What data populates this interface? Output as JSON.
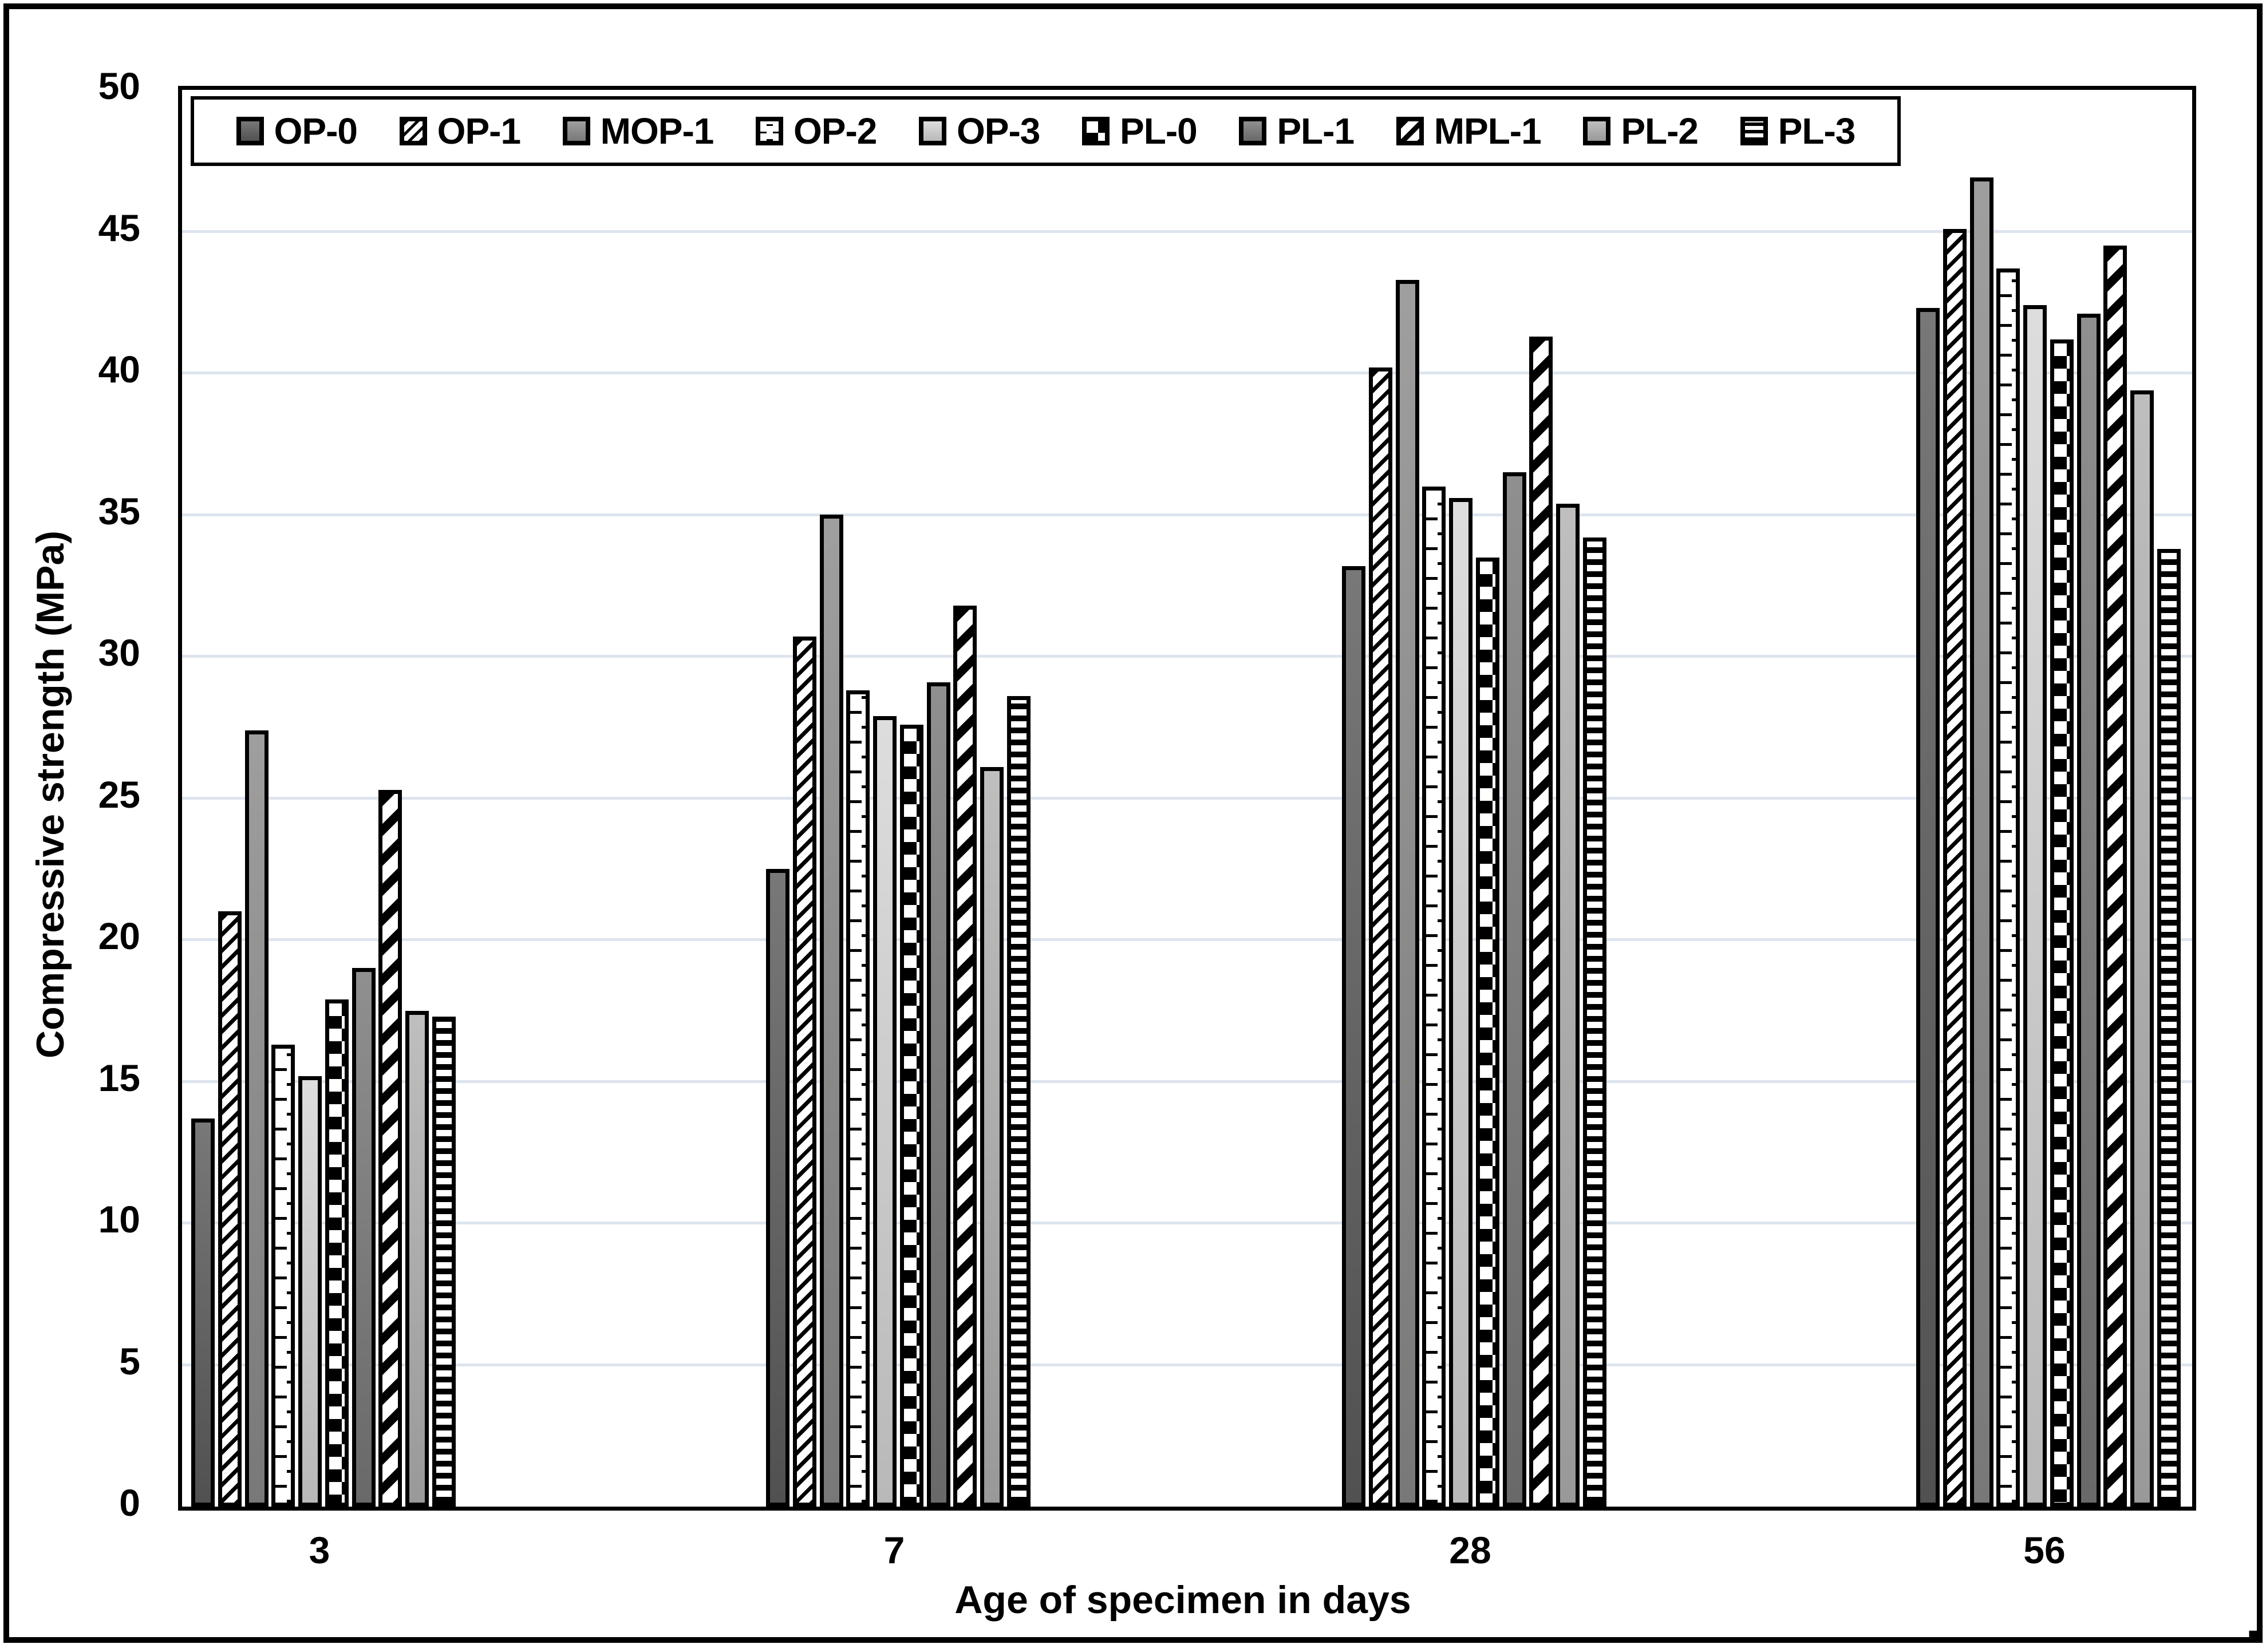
{
  "chart_data": {
    "type": "bar",
    "title": "",
    "xlabel": "Age of specimen in days",
    "ylabel": "Compressive strength (MPa)",
    "categories": [
      "3",
      "7",
      "28",
      "56"
    ],
    "ylim": [
      0,
      50
    ],
    "ytick_step": 5,
    "y_tick_labels": [
      "0",
      "5",
      "10",
      "15",
      "20",
      "25",
      "30",
      "35",
      "40",
      "45",
      "50"
    ],
    "grid": "horizontal",
    "gridline_color": "#dde4ee",
    "axis_color": "#000000",
    "legend_position": "top",
    "series": [
      {
        "name": "OP-0",
        "style": "solid",
        "color": "#5e5e5e",
        "values": [
          13.7,
          22.5,
          33.2,
          42.3
        ]
      },
      {
        "name": "OP-1",
        "style": "hatch-thin-diagonal",
        "color": "#000000",
        "values": [
          21.0,
          30.7,
          40.2,
          45.1
        ]
      },
      {
        "name": "MOP-1",
        "style": "solid",
        "color": "#8c8c8c",
        "values": [
          27.4,
          35.0,
          43.3,
          46.9
        ]
      },
      {
        "name": "OP-2",
        "style": "dash-horizontal",
        "color": "#000000",
        "values": [
          16.3,
          28.8,
          36.0,
          43.7
        ]
      },
      {
        "name": "OP-3",
        "style": "solid",
        "color": "#d7d7d7",
        "values": [
          15.2,
          27.9,
          35.6,
          42.4
        ]
      },
      {
        "name": "PL-0",
        "style": "checker",
        "color": "#000000",
        "values": [
          17.9,
          27.6,
          33.5,
          41.2
        ]
      },
      {
        "name": "PL-1",
        "style": "solid",
        "color": "#7a7a7a",
        "values": [
          19.0,
          29.1,
          36.5,
          42.1
        ]
      },
      {
        "name": "MPL-1",
        "style": "stripe-wide-diagonal",
        "color": "#000000",
        "values": [
          25.3,
          31.8,
          41.3,
          44.5
        ]
      },
      {
        "name": "PL-2",
        "style": "solid",
        "color": "#b2b2b2",
        "values": [
          17.5,
          26.1,
          35.4,
          39.4
        ]
      },
      {
        "name": "PL-3",
        "style": "stripe-horizontal",
        "color": "#000000",
        "values": [
          17.3,
          28.6,
          34.2,
          33.8
        ]
      }
    ]
  },
  "figure": {
    "background": "#ffffff",
    "border_color": "#000000",
    "trailing_period": "."
  }
}
